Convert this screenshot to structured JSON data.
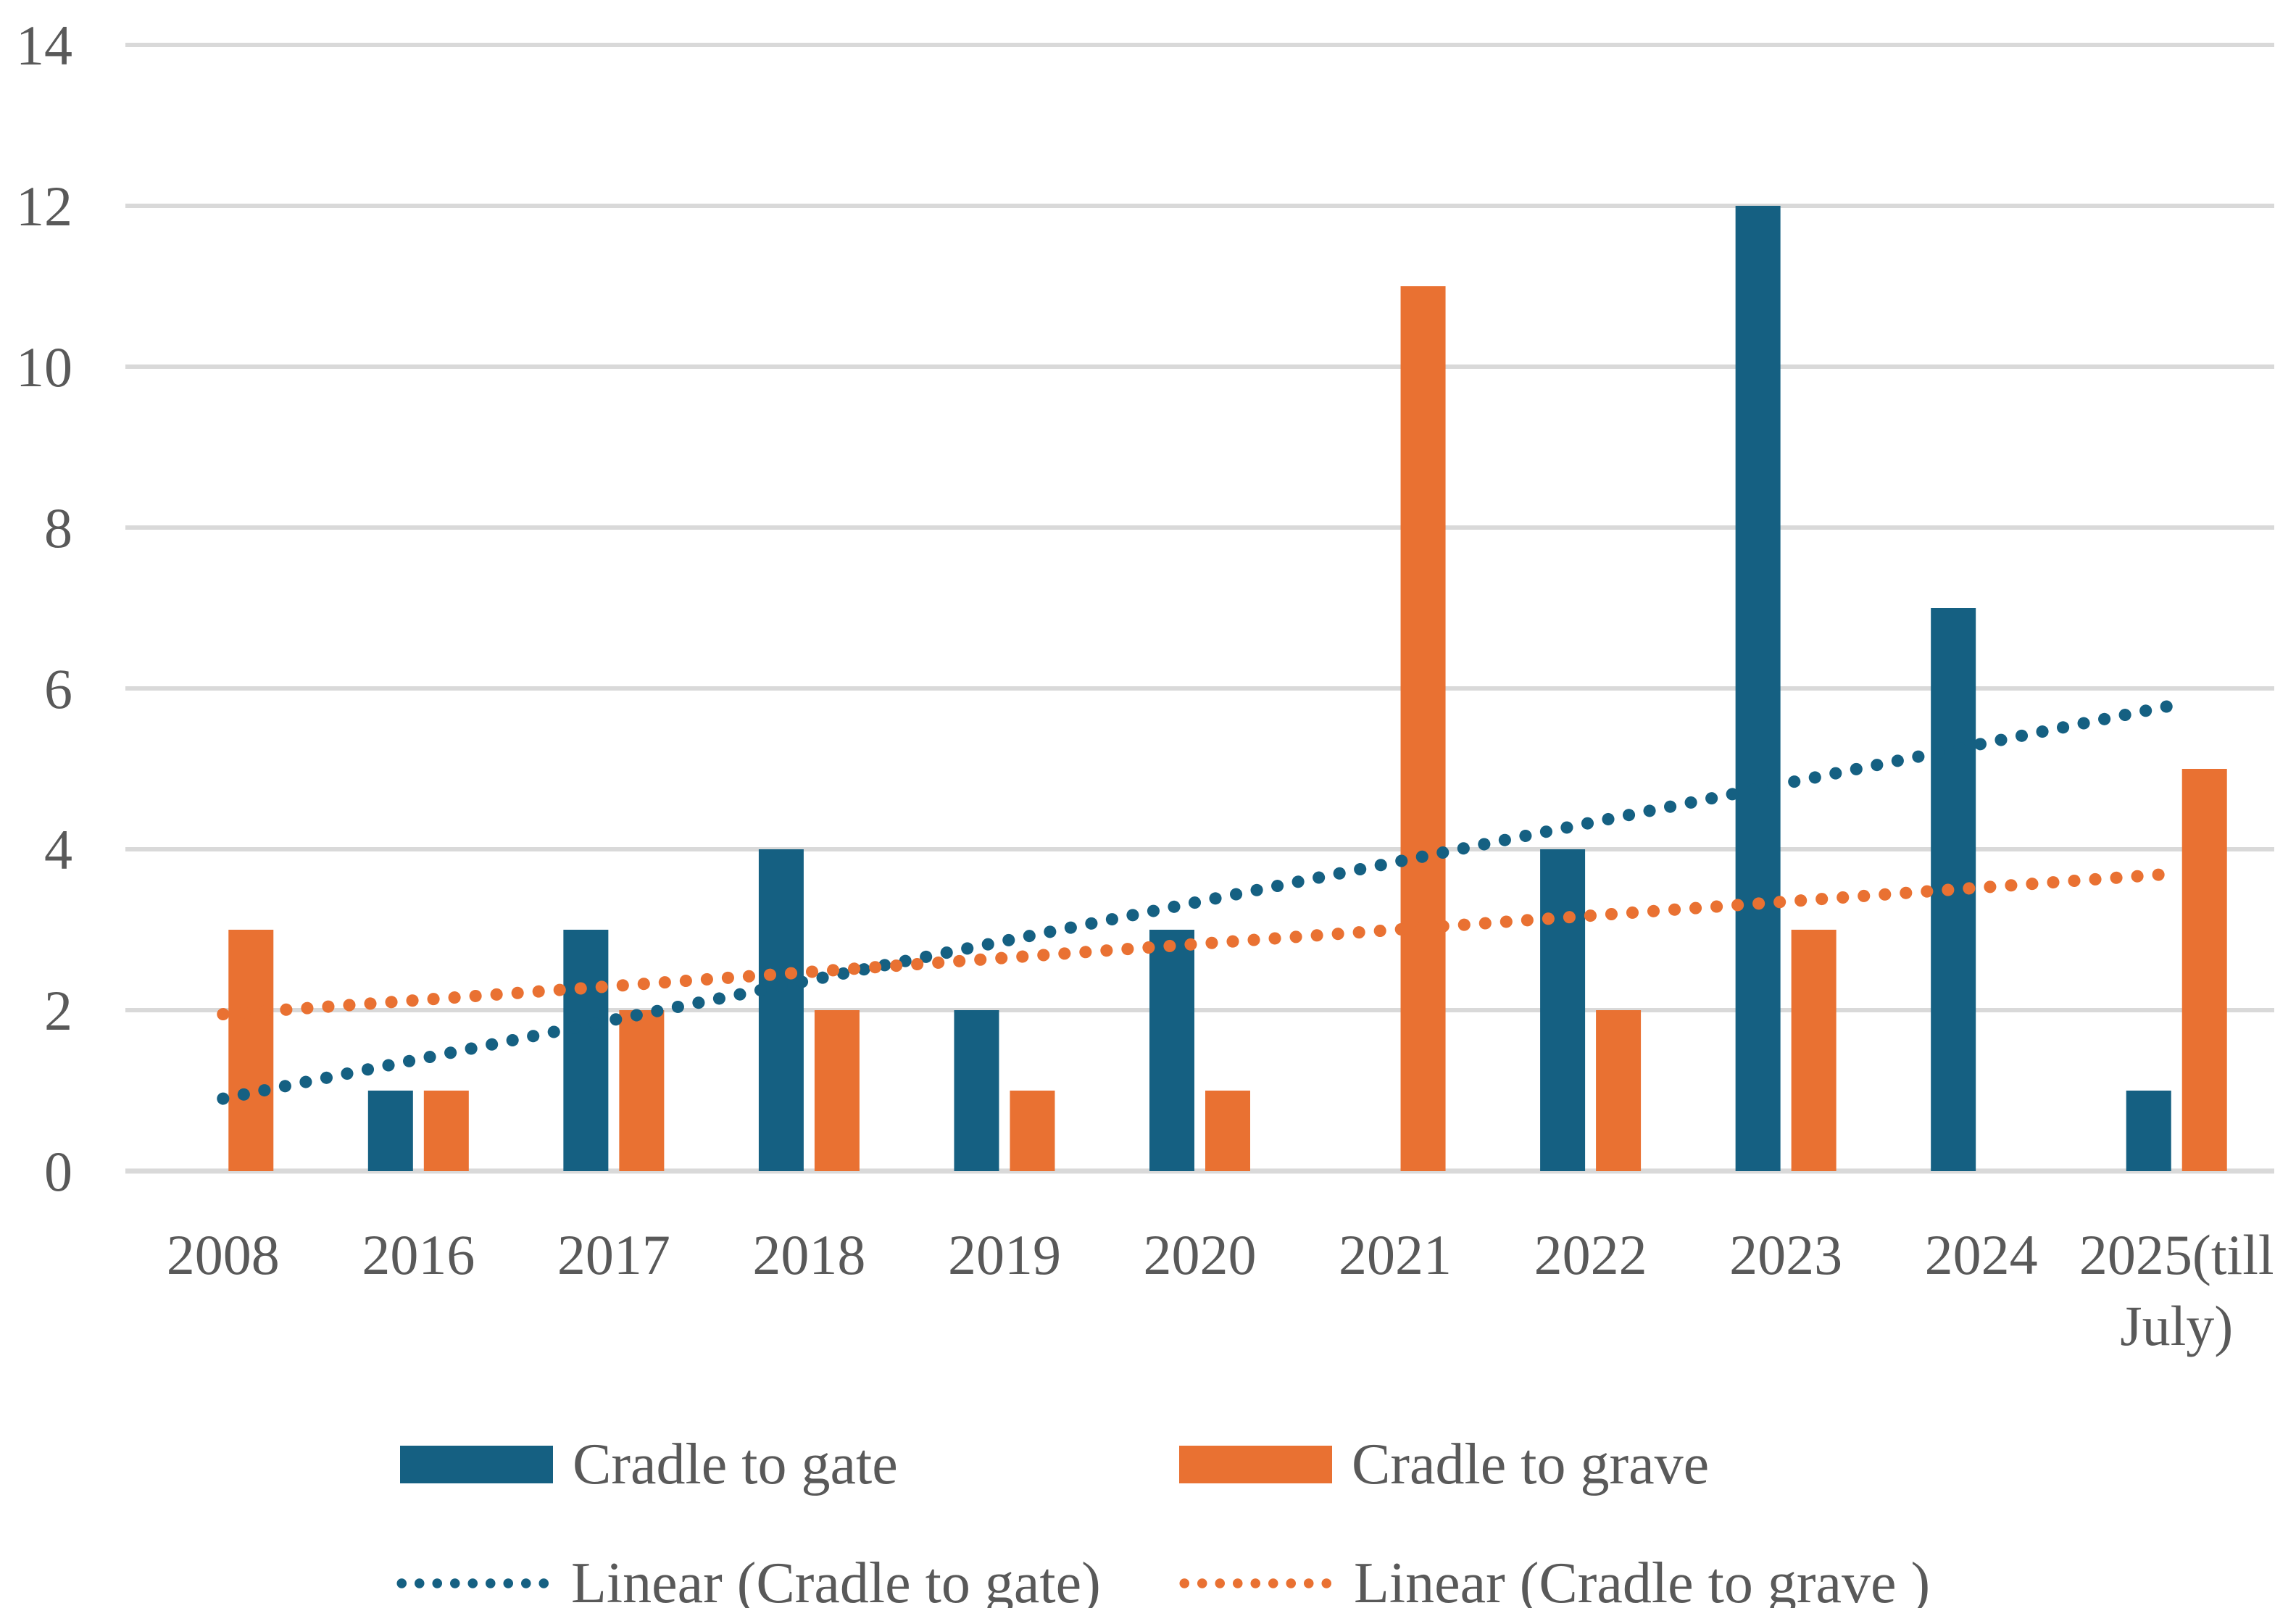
{
  "figure": {
    "background": "#FFFFFF"
  },
  "chart_data": {
    "type": "bar",
    "title": "",
    "xlabel": "",
    "ylabel": "",
    "categories": [
      "2008",
      "2016",
      "2017",
      "2018",
      "2019",
      "2020",
      "2021",
      "2022",
      "2023",
      "2024",
      "2025(till July)"
    ],
    "series": [
      {
        "name": "Cradle to gate",
        "color": "#156082",
        "values": [
          null,
          1,
          3,
          4,
          2,
          3,
          null,
          4,
          12,
          7,
          1
        ]
      },
      {
        "name": "Cradle to grave",
        "color": "#E97132",
        "values": [
          3,
          1,
          2,
          2,
          1,
          1,
          11,
          2,
          3,
          null,
          5
        ]
      }
    ],
    "trendlines": [
      {
        "name": "Linear (Cradle to gate)",
        "color": "#156082",
        "start_value": 0.9,
        "end_value": 5.8
      },
      {
        "name": "Linear (Cradle to grave )",
        "color": "#E97132",
        "start_value": 1.95,
        "end_value": 3.7
      }
    ],
    "ylim": [
      0,
      14
    ],
    "y_tick_labels": [
      "0",
      "2",
      "4",
      "6",
      "8",
      "10",
      "12",
      "14"
    ],
    "grid": true,
    "gridline_color": "#D9D9D9",
    "axis_text_color": "#595959",
    "legend_position": "bottom"
  }
}
